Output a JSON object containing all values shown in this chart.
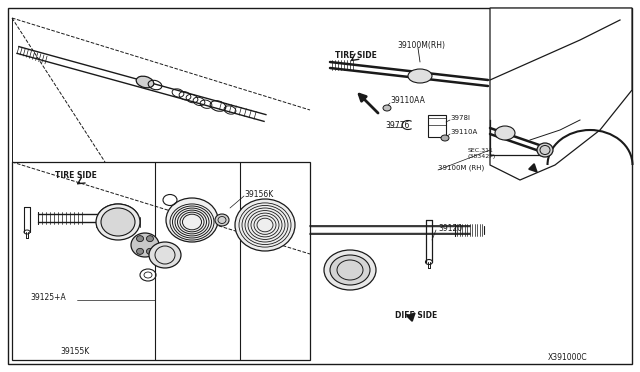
{
  "bg_color": "#ffffff",
  "line_color": "#1a1a1a",
  "fig_width": 6.4,
  "fig_height": 3.72,
  "dpi": 100,
  "labels": {
    "tire_side_upper": "TIRE SIDE",
    "tire_side_lower": "TIRE SIDE",
    "diff_side": "DIFF SIDE",
    "part_39100M_RH_upper": "39100M(RH)",
    "part_39100M_RH_lower": "39100M (RH)",
    "part_39110AA": "39110AA",
    "part_39776": "39776",
    "part_39156K": "39156K",
    "part_39781": "3978l",
    "part_39110A": "39110A",
    "part_39120": "39120",
    "part_39155K": "39155K",
    "part_39125A": "39125+A",
    "sec_ref": "SEC.311\n(38342P)",
    "diagram_id": "X391000C"
  }
}
